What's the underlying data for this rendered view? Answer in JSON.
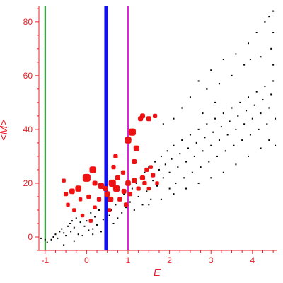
{
  "chart_data": {
    "type": "scatter",
    "title": "",
    "xlabel": "E",
    "ylabel": "<M>",
    "xlim": [
      -1.15,
      4.6
    ],
    "ylim": [
      -5,
      86
    ],
    "x_ticks": [
      -1,
      0,
      1,
      2,
      3,
      4
    ],
    "y_ticks": [
      0,
      20,
      40,
      60,
      80
    ],
    "x_tick_labels": [
      "-1",
      "0",
      "1",
      "2",
      "3",
      "4"
    ],
    "y_tick_labels": [
      "0",
      "20",
      "40",
      "60",
      "80"
    ],
    "grid": false,
    "colors": {
      "axis": "#e8202a",
      "black_points": "#000000",
      "red_points": "#ee1111"
    },
    "vertical_lines": [
      {
        "x": -1.0,
        "color": "#118811",
        "width": "thin"
      },
      {
        "x": 0.47,
        "color": "#1111ee",
        "width": "thick"
      },
      {
        "x": 1.0,
        "color": "#dd22dd",
        "width": "thin"
      }
    ],
    "series": [
      {
        "color": "black",
        "marker": "small-square",
        "points": [
          [
            -1.1,
            -0.5
          ],
          [
            -1.0,
            -1.0
          ],
          [
            -0.95,
            -2.0
          ],
          [
            -0.85,
            -1.0
          ],
          [
            -0.8,
            0.0
          ],
          [
            -0.75,
            1.0
          ],
          [
            -0.7,
            -0.5
          ],
          [
            -0.65,
            2.0
          ],
          [
            -0.6,
            3.0
          ],
          [
            -0.55,
            1.5
          ],
          [
            -0.5,
            0.5
          ],
          [
            -0.45,
            4.0
          ],
          [
            -0.4,
            5.0
          ],
          [
            -0.38,
            2.0
          ],
          [
            -0.35,
            6.0
          ],
          [
            -0.3,
            3.5
          ],
          [
            -0.25,
            7.0
          ],
          [
            -0.2,
            1.0
          ],
          [
            -0.15,
            5.5
          ],
          [
            -0.1,
            8.0
          ],
          [
            -0.05,
            4.0
          ],
          [
            0.0,
            6.0
          ],
          [
            0.05,
            2.5
          ],
          [
            0.1,
            9.0
          ],
          [
            0.15,
            3.0
          ],
          [
            0.2,
            7.5
          ],
          [
            0.25,
            4.5
          ],
          [
            0.3,
            10.0
          ],
          [
            0.35,
            2.0
          ],
          [
            0.4,
            6.5
          ],
          [
            -0.55,
            -3.0
          ],
          [
            -0.3,
            -1.5
          ],
          [
            -0.1,
            0.5
          ],
          [
            0.15,
            1.0
          ],
          [
            0.55,
            8.0
          ],
          [
            0.6,
            10.0
          ],
          [
            0.65,
            5.0
          ],
          [
            0.7,
            12.0
          ],
          [
            0.75,
            7.0
          ],
          [
            0.8,
            14.0
          ],
          [
            0.85,
            9.0
          ],
          [
            0.9,
            16.0
          ],
          [
            0.95,
            11.0
          ],
          [
            1.05,
            13.0
          ],
          [
            1.1,
            18.0
          ],
          [
            1.15,
            10.0
          ],
          [
            1.2,
            20.0
          ],
          [
            1.25,
            15.0
          ],
          [
            1.3,
            22.0
          ],
          [
            1.35,
            12.0
          ],
          [
            1.4,
            24.0
          ],
          [
            1.45,
            17.0
          ],
          [
            1.5,
            26.0
          ],
          [
            1.55,
            14.0
          ],
          [
            1.6,
            21.0
          ],
          [
            1.65,
            28.0
          ],
          [
            1.7,
            19.0
          ],
          [
            1.75,
            25.0
          ],
          [
            1.8,
            30.0
          ],
          [
            1.85,
            22.0
          ],
          [
            1.9,
            27.0
          ],
          [
            1.95,
            32.0
          ],
          [
            2.0,
            24.0
          ],
          [
            2.0,
            18.0
          ],
          [
            2.05,
            29.0
          ],
          [
            2.1,
            34.0
          ],
          [
            2.15,
            20.0
          ],
          [
            2.2,
            26.0
          ],
          [
            2.25,
            31.0
          ],
          [
            2.3,
            36.0
          ],
          [
            2.35,
            22.0
          ],
          [
            2.4,
            28.0
          ],
          [
            2.45,
            33.0
          ],
          [
            2.5,
            38.0
          ],
          [
            2.55,
            24.0
          ],
          [
            2.6,
            30.0
          ],
          [
            2.65,
            35.0
          ],
          [
            2.7,
            40.0
          ],
          [
            2.75,
            26.0
          ],
          [
            2.8,
            32.0
          ],
          [
            2.85,
            37.0
          ],
          [
            2.9,
            42.0
          ],
          [
            2.95,
            28.0
          ],
          [
            3.0,
            34.0
          ],
          [
            3.05,
            39.0
          ],
          [
            3.1,
            44.0
          ],
          [
            3.15,
            30.0
          ],
          [
            3.2,
            36.0
          ],
          [
            3.25,
            41.0
          ],
          [
            3.3,
            46.0
          ],
          [
            3.35,
            32.0
          ],
          [
            3.4,
            38.0
          ],
          [
            3.45,
            43.0
          ],
          [
            3.5,
            48.0
          ],
          [
            3.55,
            34.0
          ],
          [
            3.6,
            40.0
          ],
          [
            3.65,
            45.0
          ],
          [
            3.7,
            50.0
          ],
          [
            3.75,
            36.0
          ],
          [
            3.8,
            42.0
          ],
          [
            3.85,
            47.0
          ],
          [
            3.9,
            52.0
          ],
          [
            3.95,
            38.0
          ],
          [
            4.0,
            44.0
          ],
          [
            4.05,
            49.0
          ],
          [
            4.1,
            54.0
          ],
          [
            4.15,
            40.0
          ],
          [
            4.2,
            46.0
          ],
          [
            4.25,
            51.0
          ],
          [
            4.3,
            56.0
          ],
          [
            4.35,
            42.0
          ],
          [
            4.4,
            48.0
          ],
          [
            4.45,
            53.0
          ],
          [
            4.5,
            58.0
          ],
          [
            4.55,
            44.0
          ],
          [
            2.7,
            58.0
          ],
          [
            3.0,
            62.0
          ],
          [
            3.3,
            66.0
          ],
          [
            3.6,
            68.0
          ],
          [
            3.9,
            72.0
          ],
          [
            4.1,
            76.0
          ],
          [
            4.3,
            80.0
          ],
          [
            4.5,
            84.0
          ],
          [
            2.5,
            52.0
          ],
          [
            2.9,
            55.0
          ],
          [
            3.5,
            60.0
          ],
          [
            3.8,
            64.0
          ],
          [
            4.2,
            67.0
          ],
          [
            4.45,
            70.0
          ],
          [
            4.5,
            64.0
          ],
          [
            3.2,
            57.0
          ],
          [
            2.3,
            48.0
          ],
          [
            2.1,
            44.0
          ],
          [
            1.85,
            42.0
          ],
          [
            4.4,
            36.0
          ],
          [
            4.2,
            33.0
          ],
          [
            3.9,
            30.0
          ],
          [
            3.6,
            27.0
          ],
          [
            3.3,
            24.0
          ],
          [
            3.0,
            22.0
          ],
          [
            2.7,
            20.0
          ],
          [
            2.4,
            18.0
          ],
          [
            2.1,
            16.0
          ],
          [
            1.8,
            14.0
          ],
          [
            1.5,
            12.0
          ],
          [
            4.55,
            34.0
          ],
          [
            4.5,
            76.0
          ],
          [
            4.4,
            82.0
          ],
          [
            3.95,
            66.0
          ],
          [
            3.1,
            50.0
          ],
          [
            2.8,
            46.0
          ]
        ]
      },
      {
        "color": "red",
        "marker": "square",
        "points": [
          [
            0.0,
            22.0,
            1.0
          ],
          [
            -0.2,
            18.0,
            0.7
          ],
          [
            -0.35,
            17.0,
            0.6
          ],
          [
            -0.5,
            16.0,
            0.4
          ],
          [
            0.2,
            20.0,
            0.5
          ],
          [
            0.15,
            25.0,
            0.8
          ],
          [
            0.35,
            19.0,
            0.7
          ],
          [
            0.5,
            16.0,
            0.6
          ],
          [
            0.62,
            20.0,
            0.9
          ],
          [
            0.75,
            22.0,
            0.5
          ],
          [
            0.8,
            14.0,
            0.4
          ],
          [
            0.9,
            17.0,
            0.5
          ],
          [
            0.95,
            12.0,
            0.4
          ],
          [
            1.0,
            20.0,
            0.6
          ],
          [
            1.0,
            36.0,
            0.8
          ],
          [
            1.1,
            39.0,
            0.9
          ],
          [
            1.15,
            28.0,
            0.5
          ],
          [
            1.2,
            33.0,
            0.6
          ],
          [
            1.3,
            44.0,
            0.5
          ],
          [
            1.35,
            45.0,
            0.5
          ],
          [
            1.5,
            44.0,
            0.5
          ],
          [
            1.65,
            45.0,
            0.4
          ],
          [
            1.45,
            25.0,
            0.4
          ],
          [
            1.5,
            18.0,
            0.3
          ],
          [
            1.6,
            23.0,
            0.4
          ],
          [
            1.7,
            20.0,
            0.3
          ],
          [
            1.4,
            20.0,
            0.4
          ],
          [
            1.25,
            18.0,
            0.4
          ],
          [
            0.3,
            14.0,
            0.4
          ],
          [
            0.2,
            11.0,
            0.3
          ],
          [
            -0.45,
            12.0,
            0.3
          ],
          [
            -0.3,
            10.0,
            0.3
          ],
          [
            -0.1,
            8.0,
            0.3
          ],
          [
            0.05,
            15.0,
            0.4
          ],
          [
            0.65,
            26.0,
            0.4
          ],
          [
            0.7,
            30.0,
            0.4
          ],
          [
            0.58,
            14.0,
            0.6
          ],
          [
            0.45,
            18.0,
            0.5
          ],
          [
            1.05,
            16.0,
            0.4
          ],
          [
            1.15,
            21.0,
            0.5
          ],
          [
            0.88,
            24.0,
            0.4
          ],
          [
            -0.15,
            14.0,
            0.3
          ],
          [
            0.1,
            6.0,
            0.3
          ],
          [
            0.55,
            10.0,
            0.3
          ],
          [
            -0.55,
            21.0,
            0.3
          ],
          [
            0.72,
            18.0,
            0.8
          ],
          [
            1.35,
            22.0,
            0.5
          ],
          [
            1.55,
            26.0,
            0.3
          ]
        ]
      }
    ]
  }
}
